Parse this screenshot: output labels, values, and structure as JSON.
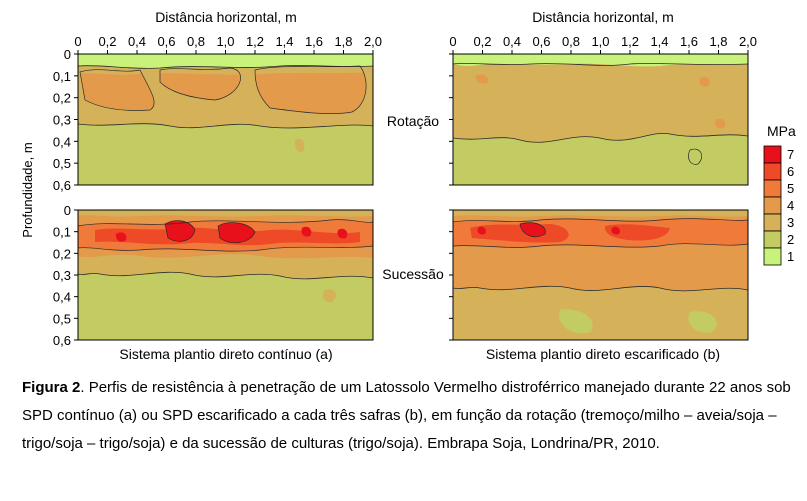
{
  "chart_data": {
    "type": "heatmap",
    "x_axis_title": "Distância horizontal, m",
    "y_axis_title": "Profundidade, m",
    "x_ticks": [
      "0",
      "0,2",
      "0,4",
      "0,6",
      "0,8",
      "1,0",
      "1,2",
      "1,4",
      "1,6",
      "1,8",
      "2,0"
    ],
    "y_ticks": [
      "0",
      "0,1",
      "0,2",
      "0,3",
      "0,4",
      "0,5",
      "0,6"
    ],
    "xlim": [
      0,
      2.0
    ],
    "ylim": [
      0,
      0.6
    ],
    "row_labels": [
      "Rotação",
      "Sucessão"
    ],
    "column_labels": [
      "Sistema plantio direto contínuo (a)",
      "Sistema plantio direto escarificado (b)"
    ],
    "legend": {
      "title": "MPa",
      "values": [
        "7",
        "6",
        "5",
        "4",
        "3",
        "2",
        "1"
      ],
      "colors": [
        "#e8101a",
        "#ee4a28",
        "#f07a3a",
        "#e39a4a",
        "#d5b25a",
        "#c3cc62",
        "#c9f27a"
      ]
    },
    "panels": [
      {
        "row": "Rotação",
        "column": "Sistema plantio direto contínuo (a)",
        "profile": [
          {
            "depth_range": [
              0.0,
              0.04
            ],
            "mpa": 1
          },
          {
            "depth_range": [
              0.04,
              0.08
            ],
            "mpa": 3
          },
          {
            "depth_range": [
              0.08,
              0.22
            ],
            "mpa": 4
          },
          {
            "depth_range": [
              0.22,
              0.3
            ],
            "mpa": 3
          },
          {
            "depth_range": [
              0.3,
              0.6
            ],
            "mpa": 2
          }
        ]
      },
      {
        "row": "Rotação",
        "column": "Sistema plantio direto escarificado (b)",
        "profile": [
          {
            "depth_range": [
              0.0,
              0.04
            ],
            "mpa": 1
          },
          {
            "depth_range": [
              0.04,
              0.3
            ],
            "mpa": 3
          },
          {
            "depth_range": [
              0.3,
              0.6
            ],
            "mpa": 2
          }
        ]
      },
      {
        "row": "Sucessão",
        "column": "Sistema plantio direto contínuo (a)",
        "profile": [
          {
            "depth_range": [
              0.0,
              0.04
            ],
            "mpa": 3
          },
          {
            "depth_range": [
              0.04,
              0.08
            ],
            "mpa": 4
          },
          {
            "depth_range": [
              0.08,
              0.17
            ],
            "mpa": 6
          },
          {
            "depth_range": [
              0.17,
              0.25
            ],
            "mpa": 4
          },
          {
            "depth_range": [
              0.25,
              0.32
            ],
            "mpa": 3
          },
          {
            "depth_range": [
              0.32,
              0.6
            ],
            "mpa": 2
          }
        ]
      },
      {
        "row": "Sucessão",
        "column": "Sistema plantio direto escarificado (b)",
        "profile": [
          {
            "depth_range": [
              0.0,
              0.04
            ],
            "mpa": 3
          },
          {
            "depth_range": [
              0.04,
              0.08
            ],
            "mpa": 4
          },
          {
            "depth_range": [
              0.08,
              0.15
            ],
            "mpa": 5
          },
          {
            "depth_range": [
              0.15,
              0.3
            ],
            "mpa": 4
          },
          {
            "depth_range": [
              0.3,
              0.6
            ],
            "mpa": 3
          }
        ]
      }
    ]
  },
  "caption": {
    "label": "Figura 2",
    "text": ". Perfis de resistência à penetração de um Latossolo Vermelho distroférrico manejado durante 22 anos sob SPD contínuo (a) ou SPD escarificado a cada três safras (b), em função da rotação (tremoço/milho – aveia/soja – trigo/soja – trigo/soja) e da sucessão de culturas (trigo/soja).  Embrapa Soja, Londrina/PR, 2010."
  }
}
